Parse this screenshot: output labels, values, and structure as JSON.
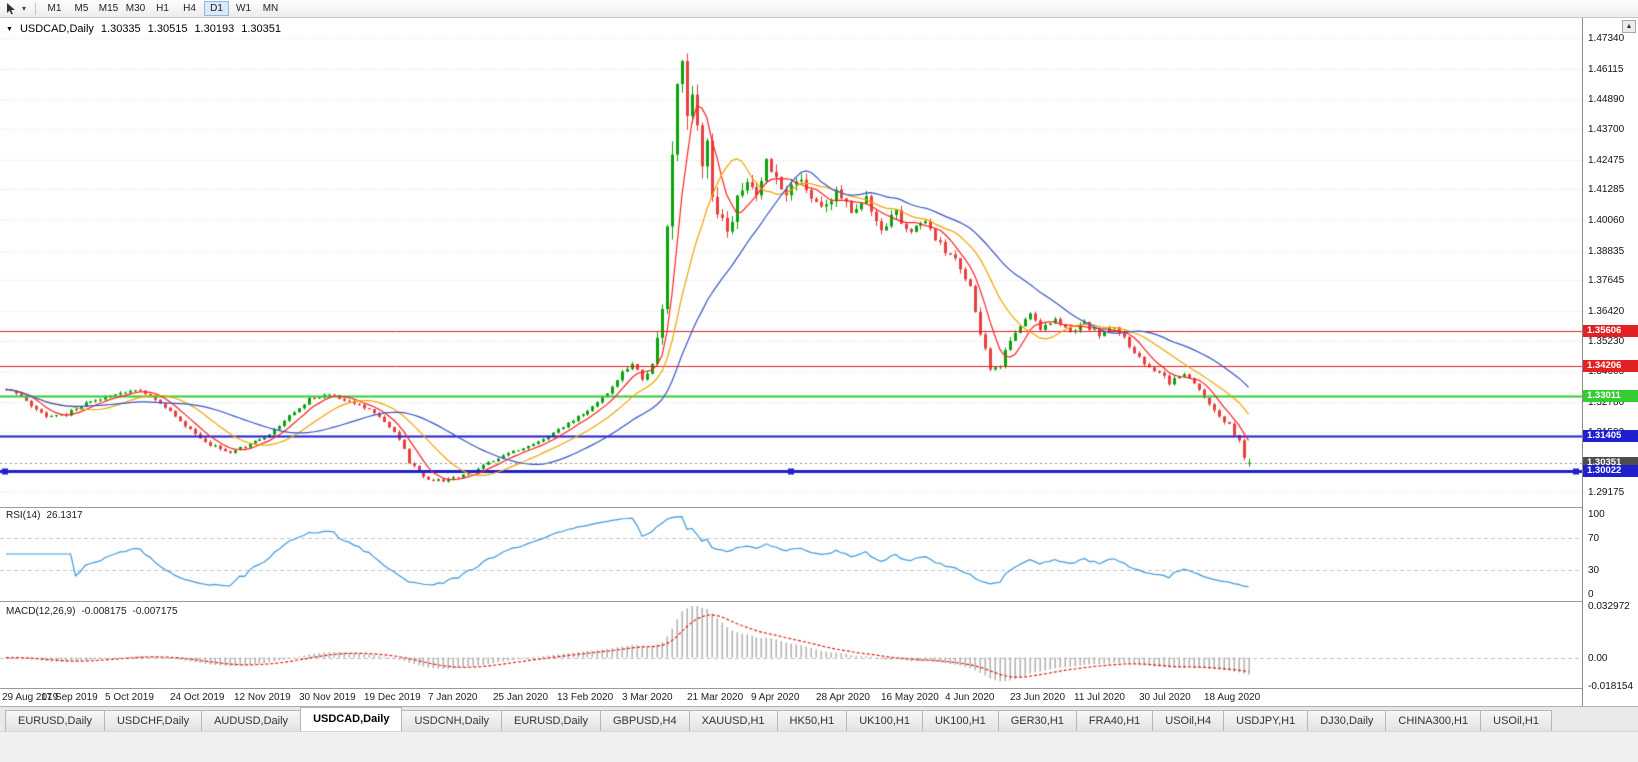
{
  "toolbar": {
    "timeframes": [
      "M1",
      "M5",
      "M15",
      "M30",
      "H1",
      "H4",
      "D1",
      "W1",
      "MN"
    ],
    "active_timeframe": "D1"
  },
  "chart": {
    "title": "USDCAD,Daily",
    "ohlc": {
      "open": "1.30335",
      "high": "1.30515",
      "low": "1.30193",
      "close": "1.30351"
    },
    "price_ticks": [
      "1.47340",
      "1.46115",
      "1.44890",
      "1.43700",
      "1.42475",
      "1.41285",
      "1.40060",
      "1.38835",
      "1.37645",
      "1.36420",
      "1.35230",
      "1.34005",
      "1.32780",
      "1.31590",
      "1.29175"
    ],
    "levels": [
      {
        "price": 1.35606,
        "label": "1.35606",
        "color": "#e22222",
        "width": 1,
        "selected": false
      },
      {
        "price": 1.34206,
        "label": "1.34206",
        "color": "#e22222",
        "width": 1,
        "selected": false
      },
      {
        "price": 1.33011,
        "label": "1.33011",
        "color": "#33cc33",
        "width": 2,
        "selected": false
      },
      {
        "price": 1.31405,
        "label": "1.31405",
        "color": "#1f1fd0",
        "width": 2,
        "selected": false
      },
      {
        "price": 1.30022,
        "label": "1.30022",
        "color": "#1f1fd0",
        "width": 3,
        "selected": true
      }
    ],
    "current_price": {
      "value": 1.30351,
      "label": "1.30351",
      "badge_color": "#4d4d4d"
    },
    "date_labels": [
      "29 Aug 2019",
      "17 Sep 2019",
      "5 Oct 2019",
      "24 Oct 2019",
      "12 Nov 2019",
      "30 Nov 2019",
      "19 Dec 2019",
      "7 Jan 2020",
      "25 Jan 2020",
      "13 Feb 2020",
      "3 Mar 2020",
      "21 Mar 2020",
      "9 Apr 2020",
      "28 Apr 2020",
      "16 May 2020",
      "4 Jun 2020",
      "23 Jun 2020",
      "11 Jul 2020",
      "30 Jul 2020",
      "18 Aug 2020"
    ],
    "colors": {
      "up": "#0ca30c",
      "down": "#e84040",
      "ma_fast": "#ff2222",
      "ma_mid": "#f0a500",
      "ma_slow": "#3a56c8",
      "grid": "#dadada",
      "rsi_line": "#3e9ade",
      "rsi_level": "#c4c4c4",
      "macd_hist": "#ababab",
      "macd_signal": "#e02020",
      "price_line": "#909090"
    }
  },
  "rsi": {
    "label": "RSI(14)",
    "value": "26.1317",
    "ticks": [
      "100",
      "70",
      "30",
      "0"
    ],
    "levels": [
      70,
      30
    ]
  },
  "macd": {
    "label": "MACD(12,26,9)",
    "value1": "-0.008175",
    "value2": "-0.007175",
    "ticks": [
      "0.032972",
      "0.00",
      "-0.018154"
    ]
  },
  "tabs": {
    "active_index": 3,
    "items": [
      "EURUSD,Daily",
      "USDCHF,Daily",
      "AUDUSD,Daily",
      "USDCAD,Daily",
      "USDCNH,Daily",
      "EURUSD,Daily",
      "GBPUSD,H4",
      "XAUUSD,H1",
      "HK50,H1",
      "UK100,H1",
      "UK100,H1",
      "GER30,H1",
      "FRA40,H1",
      "USOil,H4",
      "USDJPY,H1",
      "DJ30,Daily",
      "CHINA300,H1",
      "USOil,H1"
    ],
    "scroll_up_icon": "▲"
  },
  "chart_data": {
    "type": "candlestick",
    "symbol": "USDCAD",
    "timeframe": "Daily",
    "candle_count": 251,
    "label_spacing": 13,
    "visible_range": {
      "first_date": "29 Aug 2019",
      "last_date": "18 Aug 2020",
      "price_low": 1.287,
      "price_high": 1.479
    },
    "last_candle": {
      "open": 1.30335,
      "high": 1.30515,
      "low": 1.30193,
      "close": 1.30351
    },
    "horizontal_levels": [
      1.35606,
      1.34206,
      1.33011,
      1.31405,
      1.30022
    ],
    "close_path_anchors": [
      [
        0,
        1.333,
        0.0016
      ],
      [
        4,
        1.3285,
        0.0016
      ],
      [
        8,
        1.3215,
        0.0016
      ],
      [
        12,
        1.323,
        0.0015
      ],
      [
        17,
        1.328,
        0.0014
      ],
      [
        22,
        1.331,
        0.0014
      ],
      [
        26,
        1.333,
        0.0014
      ],
      [
        30,
        1.329,
        0.0014
      ],
      [
        35,
        1.32,
        0.0015
      ],
      [
        40,
        1.312,
        0.0015
      ],
      [
        44,
        1.3075,
        0.0014
      ],
      [
        48,
        1.31,
        0.0013
      ],
      [
        53,
        1.315,
        0.0013
      ],
      [
        57,
        1.322,
        0.0013
      ],
      [
        61,
        1.329,
        0.0013
      ],
      [
        65,
        1.331,
        0.0013
      ],
      [
        69,
        1.328,
        0.0013
      ],
      [
        73,
        1.325,
        0.0013
      ],
      [
        76,
        1.32,
        0.0014
      ],
      [
        79,
        1.313,
        0.0015
      ],
      [
        81,
        1.304,
        0.0016
      ],
      [
        84,
        1.2975,
        0.0014
      ],
      [
        88,
        1.296,
        0.0011
      ],
      [
        92,
        1.2985,
        0.0011
      ],
      [
        97,
        1.3035,
        0.0011
      ],
      [
        102,
        1.308,
        0.0011
      ],
      [
        107,
        1.312,
        0.0011
      ],
      [
        112,
        1.318,
        0.0011
      ],
      [
        117,
        1.3245,
        0.0012
      ],
      [
        121,
        1.331,
        0.0013
      ],
      [
        124,
        1.3395,
        0.0016
      ],
      [
        126,
        1.343,
        0.0018
      ],
      [
        128,
        1.337,
        0.002
      ],
      [
        130,
        1.342,
        0.003
      ],
      [
        131,
        1.352,
        0.0045
      ],
      [
        132,
        1.366,
        0.006
      ],
      [
        133,
        1.395,
        0.009
      ],
      [
        134,
        1.428,
        0.011
      ],
      [
        135,
        1.455,
        0.012
      ],
      [
        136,
        1.464,
        0.012
      ],
      [
        137,
        1.445,
        0.013
      ],
      [
        138,
        1.456,
        0.012
      ],
      [
        139,
        1.438,
        0.011
      ],
      [
        140,
        1.422,
        0.01
      ],
      [
        141,
        1.431,
        0.009
      ],
      [
        142,
        1.413,
        0.0085
      ],
      [
        143,
        1.404,
        0.008
      ],
      [
        145,
        1.398,
        0.0075
      ],
      [
        147,
        1.408,
        0.007
      ],
      [
        149,
        1.416,
        0.0065
      ],
      [
        151,
        1.411,
        0.006
      ],
      [
        153,
        1.423,
        0.0058
      ],
      [
        155,
        1.417,
        0.0055
      ],
      [
        157,
        1.409,
        0.0052
      ],
      [
        159,
        1.417,
        0.005
      ],
      [
        161,
        1.412,
        0.0048
      ],
      [
        164,
        1.407,
        0.0046
      ],
      [
        167,
        1.411,
        0.0044
      ],
      [
        170,
        1.405,
        0.0042
      ],
      [
        173,
        1.409,
        0.004
      ],
      [
        176,
        1.398,
        0.0038
      ],
      [
        179,
        1.403,
        0.0036
      ],
      [
        182,
        1.396,
        0.0035
      ],
      [
        185,
        1.4,
        0.0034
      ],
      [
        188,
        1.391,
        0.0033
      ],
      [
        191,
        1.384,
        0.0033
      ],
      [
        194,
        1.374,
        0.0034
      ],
      [
        196,
        1.356,
        0.0036
      ],
      [
        198,
        1.34,
        0.0036
      ],
      [
        200,
        1.343,
        0.0032
      ],
      [
        202,
        1.352,
        0.003
      ],
      [
        204,
        1.359,
        0.0028
      ],
      [
        206,
        1.364,
        0.0026
      ],
      [
        208,
        1.357,
        0.0025
      ],
      [
        211,
        1.361,
        0.0024
      ],
      [
        214,
        1.356,
        0.0023
      ],
      [
        217,
        1.359,
        0.0022
      ],
      [
        220,
        1.3545,
        0.0022
      ],
      [
        223,
        1.3575,
        0.0021
      ],
      [
        226,
        1.3505,
        0.0021
      ],
      [
        229,
        1.343,
        0.0021
      ],
      [
        232,
        1.34,
        0.0021
      ],
      [
        234,
        1.3355,
        0.002
      ],
      [
        237,
        1.339,
        0.0019
      ],
      [
        240,
        1.3335,
        0.0019
      ],
      [
        242,
        1.327,
        0.0019
      ],
      [
        244,
        1.322,
        0.0018
      ],
      [
        246,
        1.3185,
        0.0018
      ],
      [
        248,
        1.312,
        0.0018
      ],
      [
        249,
        1.305,
        0.0022
      ],
      [
        250,
        1.30351,
        0.0012
      ]
    ],
    "indicators": {
      "moving_averages": [
        {
          "period": 6,
          "color": "#ff2222"
        },
        {
          "period": 14,
          "color": "#f0a500"
        },
        {
          "period": 28,
          "color": "#3a56c8"
        }
      ],
      "rsi": {
        "period": 14,
        "last_value": 26.1317
      },
      "macd": {
        "fast": 12,
        "slow": 26,
        "signal": 9,
        "last_macd": -0.008175,
        "last_signal": -0.007175
      }
    }
  }
}
